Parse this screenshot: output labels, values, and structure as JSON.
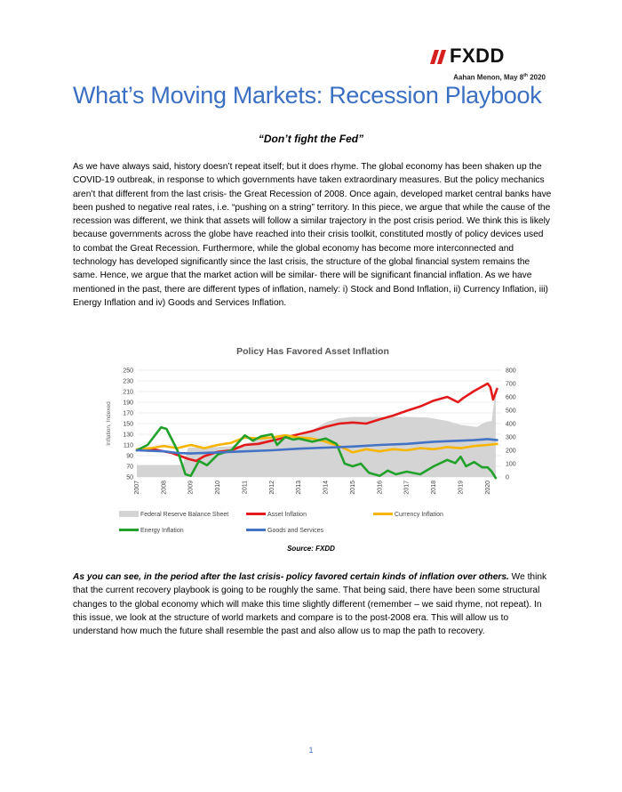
{
  "header": {
    "logo_text": "FXDD",
    "author_name": "Aahan Menon, May 8",
    "author_date_sup": "th",
    "author_year": " 2020",
    "title": "What’s Moving Markets: Recession Playbook",
    "subtitle": "“Don’t fight the Fed”"
  },
  "body": {
    "paragraph1": "As we have always said, history doesn’t repeat itself; but it does rhyme. The global economy has been shaken up the COVID-19 outbreak, in response to which governments have taken extraordinary measures. But the policy mechanics aren’t that different from the last crisis- the Great Recession of 2008. Once again, developed market central banks have been pushed to negative real rates, i.e. “pushing on a string” territory. In this piece, we argue that while the cause of the recession was different, we think that assets will follow a similar trajectory in the post crisis period. We think this is likely because governments across the globe have reached into their crisis toolkit, constituted mostly of policy devices used to combat the Great Recession. Furthermore, while the global economy has become more interconnected and technology has developed significantly since the last crisis, the structure of the global financial system remains the same. Hence, we argue that the market action will be similar- there will be significant financial inflation. As we have mentioned in the past, there are different types of inflation, namely: i) Stock and Bond Inflation, ii) Currency Inflation, iii) Energy Inflation and iv) Goods and Services Inflation.",
    "paragraph2_lead": "As you can see, in the period after the last crisis- policy favored certain kinds of inflation over others.",
    "paragraph2_rest": " We think that the current recovery playbook is going to be roughly the same. That being said, there have been some structural changes to the global economy which will make this time slightly different (remember – we said rhyme, not repeat). In this issue, we look at the structure of world markets and compare is to the post-2008 era. This will allow us to understand how much the future shall resemble the past and also allow us to map the path to recovery.",
    "caption": "Source: FXDD",
    "page_number": "1"
  },
  "colors": {
    "title": "#3a6fc4",
    "logo_red": "#d62020",
    "fed": "#d4d4d4",
    "asset": "#e31a1c",
    "currency": "#f7b500",
    "energy": "#21a12a",
    "goods": "#4472c4"
  },
  "chart_data": {
    "type": "line",
    "title": "Policy Has Favored Asset Inflation",
    "ylabel": "Inflation, Indexed",
    "ylim": [
      50,
      250
    ],
    "y2lim": [
      0,
      800
    ],
    "yticks": [
      "250",
      "230",
      "210",
      "190",
      "170",
      "150",
      "130",
      "110",
      "90",
      "70",
      "50"
    ],
    "y2ticks": [
      "800",
      "700",
      "600",
      "500",
      "400",
      "300",
      "200",
      "100",
      "0"
    ],
    "xlim": [
      2007,
      2020.5
    ],
    "categories": [
      "2007",
      "2008",
      "2009",
      "2010",
      "2011",
      "2012",
      "2013",
      "2014",
      "2015",
      "2016",
      "2017",
      "2018",
      "2019",
      "2020"
    ],
    "series": [
      {
        "name": "Federal Reserve Balance Sheet",
        "axis": "right",
        "kind": "area",
        "color": "#d4d4d4",
        "x": [
          2007,
          2008.7,
          2008.9,
          2009.5,
          2010,
          2010.8,
          2011.5,
          2012,
          2012.9,
          2013.5,
          2014,
          2014.5,
          2015,
          2016,
          2017,
          2017.8,
          2018.5,
          2019,
          2019.6,
          2019.9,
          2020.15,
          2020.3
        ],
        "values": [
          90,
          90,
          220,
          220,
          225,
          235,
          280,
          285,
          295,
          350,
          410,
          440,
          450,
          450,
          450,
          445,
          420,
          390,
          375,
          410,
          420,
          670
        ]
      },
      {
        "name": "Asset Inflation",
        "axis": "left",
        "color": "#e31a1c",
        "x": [
          2007,
          2007.5,
          2007.8,
          2008.3,
          2008.9,
          2009.2,
          2009.5,
          2010,
          2010.5,
          2011,
          2011.5,
          2012,
          2012.5,
          2013,
          2013.5,
          2014,
          2014.5,
          2015,
          2015.5,
          2016,
          2016.5,
          2017,
          2017.5,
          2018,
          2018.5,
          2018.9,
          2019.1,
          2019.5,
          2020,
          2020.1,
          2020.2,
          2020.35
        ],
        "values": [
          100,
          103,
          100,
          95,
          84,
          80,
          89,
          97,
          100,
          110,
          112,
          118,
          124,
          130,
          136,
          144,
          150,
          152,
          150,
          158,
          165,
          174,
          182,
          193,
          200,
          190,
          198,
          211,
          225,
          218,
          195,
          215
        ]
      },
      {
        "name": "Currency Inflation",
        "axis": "left",
        "color": "#f7b500",
        "x": [
          2007,
          2007.5,
          2008,
          2008.5,
          2009,
          2009.5,
          2010,
          2010.5,
          2011,
          2011.5,
          2012,
          2012.5,
          2013,
          2013.5,
          2014,
          2014.5,
          2015,
          2015.5,
          2016,
          2016.5,
          2017,
          2017.5,
          2018,
          2018.5,
          2019,
          2019.5,
          2020,
          2020.35
        ],
        "values": [
          102,
          104,
          108,
          104,
          110,
          104,
          110,
          114,
          124,
          122,
          124,
          128,
          124,
          122,
          116,
          108,
          96,
          102,
          98,
          102,
          100,
          104,
          102,
          106,
          104,
          108,
          110,
          112
        ]
      },
      {
        "name": "Energy Inflation",
        "axis": "left",
        "color": "#21a12a",
        "x": [
          2007,
          2007.4,
          2007.7,
          2007.9,
          2008.1,
          2008.5,
          2008.8,
          2009,
          2009.3,
          2009.6,
          2010,
          2010.5,
          2011,
          2011.3,
          2011.6,
          2012,
          2012.2,
          2012.5,
          2012.8,
          2013,
          2013.5,
          2014,
          2014.4,
          2014.7,
          2015,
          2015.3,
          2015.6,
          2016,
          2016.3,
          2016.6,
          2017,
          2017.5,
          2018,
          2018.5,
          2018.8,
          2019,
          2019.2,
          2019.5,
          2019.8,
          2020,
          2020.15,
          2020.3
        ],
        "values": [
          100,
          110,
          130,
          143,
          140,
          100,
          55,
          52,
          80,
          72,
          92,
          100,
          128,
          118,
          126,
          130,
          110,
          125,
          120,
          122,
          116,
          122,
          112,
          75,
          70,
          75,
          58,
          52,
          62,
          55,
          60,
          55,
          70,
          82,
          76,
          88,
          70,
          78,
          68,
          68,
          60,
          48
        ]
      },
      {
        "name": "Goods and Services",
        "axis": "left",
        "color": "#4472c4",
        "x": [
          2007,
          2008,
          2008.5,
          2009,
          2010,
          2011,
          2012,
          2013,
          2014,
          2015,
          2016,
          2017,
          2018,
          2019,
          2019.5,
          2020,
          2020.35
        ],
        "values": [
          100,
          98,
          95,
          94,
          96,
          98,
          100,
          103,
          105,
          107,
          110,
          112,
          116,
          118,
          119,
          121,
          119
        ]
      }
    ],
    "legend": [
      {
        "label": "Federal Reserve Balance Sheet",
        "color": "#d4d4d4",
        "swatch": "box"
      },
      {
        "label": "Asset Inflation",
        "color": "#e31a1c",
        "swatch": "line"
      },
      {
        "label": "Currency Inflation",
        "color": "#f7b500",
        "swatch": "line"
      },
      {
        "label": "Energy Inflation",
        "color": "#21a12a",
        "swatch": "line"
      },
      {
        "label": "Goods and Services",
        "color": "#4472c4",
        "swatch": "line"
      }
    ],
    "legend_position": "bottom",
    "grid": true
  }
}
